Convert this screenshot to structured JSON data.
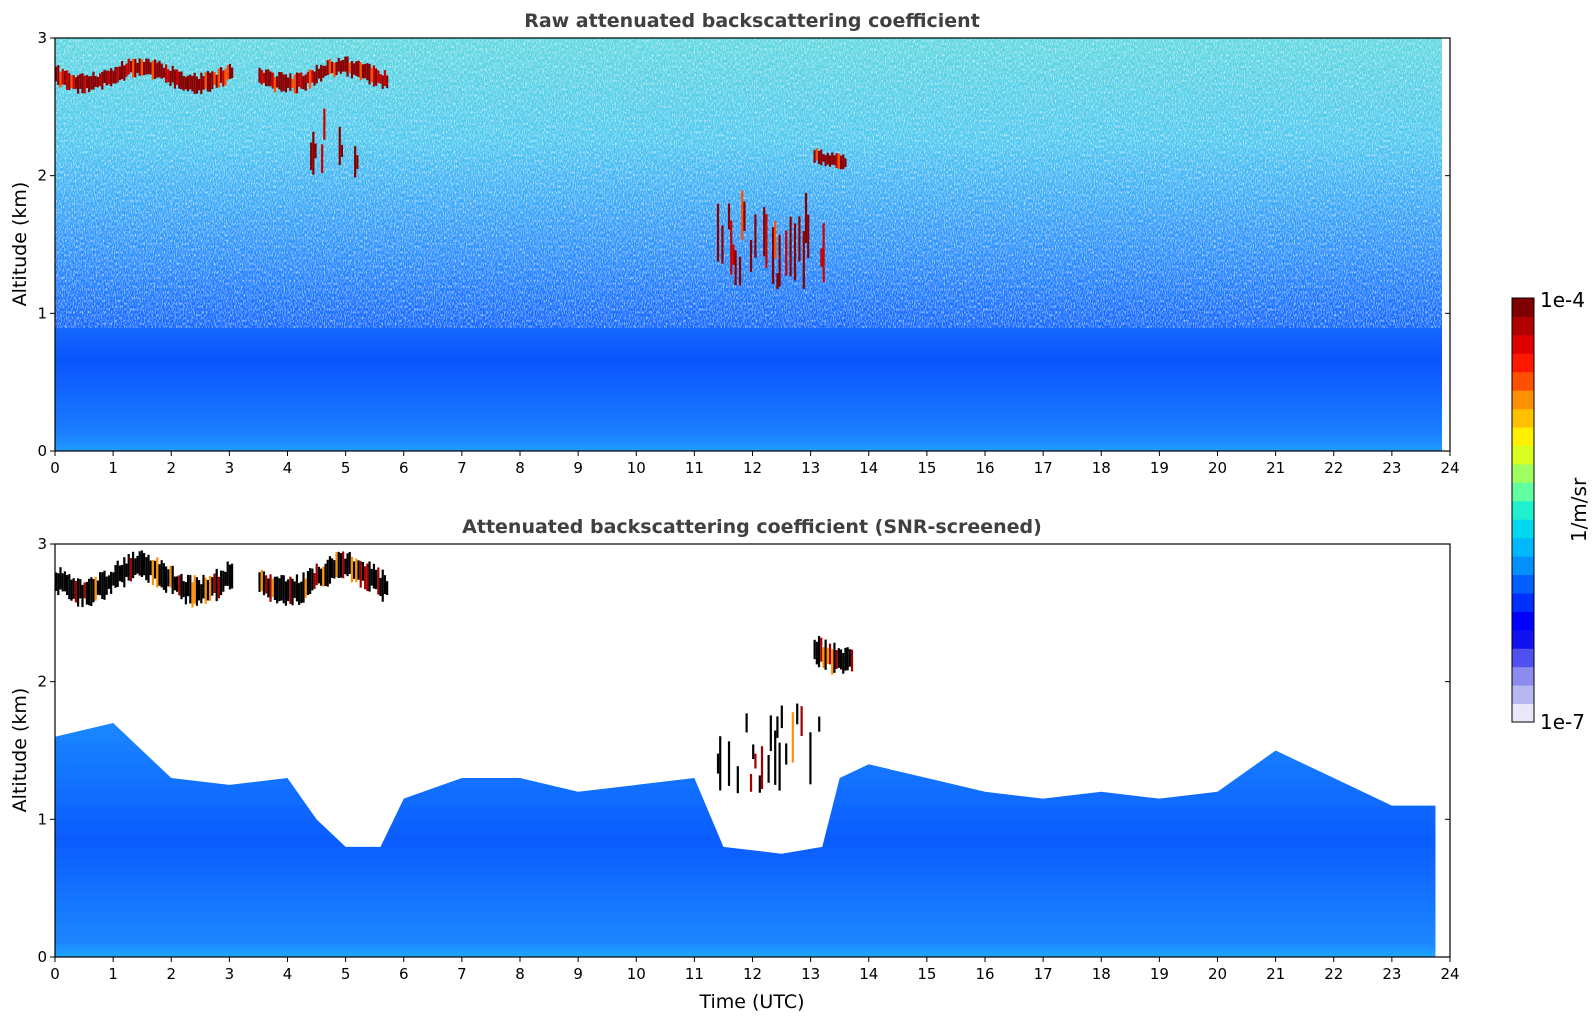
{
  "chart_data": [
    {
      "type": "heatmap",
      "title": "Raw attenuated backscattering coefficient",
      "ylabel": "Altitude (km)",
      "xlabel": "",
      "xlim": [
        0,
        24
      ],
      "ylim": [
        0,
        3
      ],
      "x_ticks": [
        "0",
        "1",
        "2",
        "3",
        "4",
        "5",
        "6",
        "7",
        "8",
        "9",
        "10",
        "11",
        "12",
        "13",
        "14",
        "15",
        "16",
        "17",
        "18",
        "19",
        "20",
        "21",
        "22",
        "23",
        "24"
      ],
      "y_ticks": [
        "0",
        "1",
        "2",
        "3"
      ],
      "data_end_hour": 23.75,
      "layers": [
        {
          "feature": "cloud",
          "x_start": 0.0,
          "x_end": 3.05,
          "y_bottom": 2.6,
          "y_top": 2.8,
          "level": "max"
        },
        {
          "feature": "cloud",
          "x_start": 3.5,
          "x_end": 5.7,
          "y_bottom": 2.6,
          "y_top": 2.8,
          "level": "max"
        },
        {
          "feature": "cloud",
          "x_start": 4.35,
          "x_end": 5.25,
          "y_bottom": 1.95,
          "y_top": 2.5,
          "level": "max"
        },
        {
          "feature": "cloud",
          "x_start": 11.35,
          "x_end": 13.35,
          "y_bottom": 1.15,
          "y_top": 1.9,
          "level": "max"
        },
        {
          "feature": "cloud",
          "x_start": 13.05,
          "x_end": 13.6,
          "y_bottom": 2.05,
          "y_top": 2.2,
          "level": "max"
        }
      ],
      "noise_region": {
        "y_bottom": 1.0,
        "y_top": 3.0
      },
      "boundary_layer": {
        "y_bottom": 0.0,
        "y_top": 1.0
      }
    },
    {
      "type": "heatmap",
      "title": "Attenuated backscattering coefficient (SNR-screened)",
      "ylabel": "Altitude (km)",
      "xlabel": "Time (UTC)",
      "xlim": [
        0,
        24
      ],
      "ylim": [
        0,
        3
      ],
      "x_ticks": [
        "0",
        "1",
        "2",
        "3",
        "4",
        "5",
        "6",
        "7",
        "8",
        "9",
        "10",
        "11",
        "12",
        "13",
        "14",
        "15",
        "16",
        "17",
        "18",
        "19",
        "20",
        "21",
        "22",
        "23",
        "24"
      ],
      "y_ticks": [
        "0",
        "1",
        "2",
        "3"
      ],
      "data_end_hour": 23.75,
      "layers": [
        {
          "feature": "cloud",
          "x_start": 0.0,
          "x_end": 3.05,
          "y_bottom": 2.55,
          "y_top": 2.85,
          "level": "saturated"
        },
        {
          "feature": "cloud",
          "x_start": 3.5,
          "x_end": 5.7,
          "y_bottom": 2.55,
          "y_top": 2.85,
          "level": "saturated"
        },
        {
          "feature": "cloud",
          "x_start": 11.35,
          "x_end": 13.35,
          "y_bottom": 1.15,
          "y_top": 1.85,
          "level": "saturated"
        },
        {
          "feature": "cloud",
          "x_start": 13.05,
          "x_end": 13.7,
          "y_bottom": 2.05,
          "y_top": 2.35,
          "level": "saturated"
        }
      ],
      "boundary_layer_top_km": [
        [
          0.0,
          1.6
        ],
        [
          1.0,
          1.7
        ],
        [
          2.0,
          1.3
        ],
        [
          3.0,
          1.25
        ],
        [
          4.0,
          1.3
        ],
        [
          4.5,
          1.0
        ],
        [
          5.0,
          0.8
        ],
        [
          5.6,
          0.8
        ],
        [
          6.0,
          1.15
        ],
        [
          7.0,
          1.3
        ],
        [
          8.0,
          1.3
        ],
        [
          9.0,
          1.2
        ],
        [
          10.0,
          1.25
        ],
        [
          11.0,
          1.3
        ],
        [
          11.5,
          0.8
        ],
        [
          12.5,
          0.75
        ],
        [
          13.2,
          0.8
        ],
        [
          13.5,
          1.3
        ],
        [
          14.0,
          1.4
        ],
        [
          15.0,
          1.3
        ],
        [
          16.0,
          1.2
        ],
        [
          17.0,
          1.15
        ],
        [
          18.0,
          1.2
        ],
        [
          19.0,
          1.15
        ],
        [
          20.0,
          1.2
        ],
        [
          21.0,
          1.5
        ],
        [
          22.0,
          1.3
        ],
        [
          23.0,
          1.1
        ],
        [
          23.75,
          1.1
        ]
      ]
    }
  ],
  "colorbar": {
    "max_label": "1e-4",
    "min_label": "1e-7",
    "unit_label": "1/m/sr",
    "scale": "log",
    "colors": [
      "#e8e8f8",
      "#b8b8f0",
      "#8c8cf0",
      "#5050f0",
      "#1010f0",
      "#0000ff",
      "#0030ff",
      "#0060ff",
      "#0090ff",
      "#00b8ff",
      "#00d8f0",
      "#20f0d0",
      "#60ffa0",
      "#a0ff60",
      "#d8ff20",
      "#fff000",
      "#ffc000",
      "#ff9000",
      "#ff5000",
      "#ff1800",
      "#e00000",
      "#b00000",
      "#800000"
    ]
  }
}
